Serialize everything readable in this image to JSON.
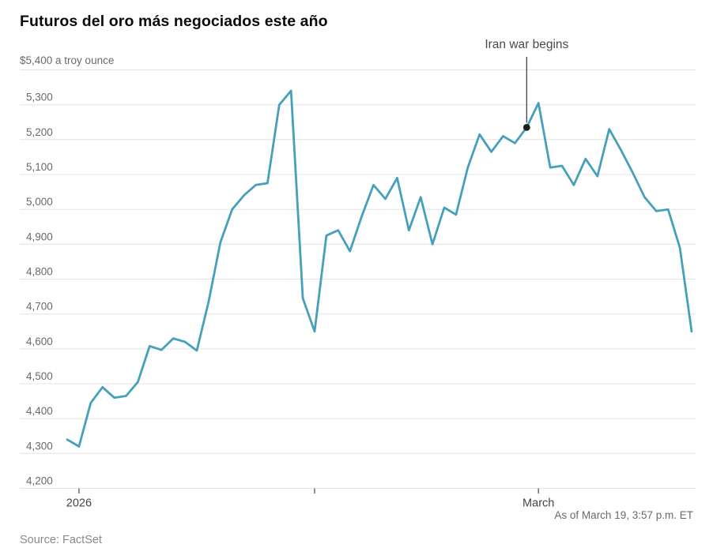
{
  "chart_data": {
    "type": "line",
    "title": "Futuros del oro más negociados este año",
    "unit_label": "$5,400 a troy ounce",
    "series": [
      {
        "name": "gold-futures-price",
        "values": [
          4340,
          4320,
          4445,
          4490,
          4460,
          4465,
          4505,
          4608,
          4597,
          4630,
          4620,
          4595,
          4735,
          4905,
          5000,
          5040,
          5070,
          5075,
          5300,
          5340,
          4745,
          4650,
          4925,
          4940,
          4880,
          4980,
          5070,
          5030,
          5090,
          4940,
          5035,
          4900,
          5005,
          4985,
          5120,
          5215,
          5165,
          5210,
          5190,
          5235,
          5305,
          5120,
          5125,
          5070,
          5145,
          5095,
          5230,
          5170,
          5105,
          5035,
          4995,
          5000,
          4890,
          4650
        ]
      }
    ],
    "ylim": [
      4200,
      5400
    ],
    "ytick_values": [
      5300,
      5200,
      5100,
      5000,
      4900,
      4800,
      4700,
      4600,
      4500,
      4400,
      4300,
      4200
    ],
    "xticks": [
      {
        "label": "2026",
        "index": 1
      },
      {
        "label": "",
        "index": 21
      },
      {
        "label": "March",
        "index": 40
      }
    ],
    "annotation": {
      "label": "Iran war begins",
      "index": 39,
      "value": 5235
    },
    "as_of": "As of March 19, 3:57 p.m. ET",
    "source": "Source: FactSet",
    "grid_on": true,
    "legend": "none",
    "line_color": "#47A0BA",
    "grid_color": "#E4E4E4",
    "tick_color": "#555555",
    "dot_color": "#1f1f1f",
    "label_color": "#696969",
    "xlabel_color": "#444444"
  }
}
